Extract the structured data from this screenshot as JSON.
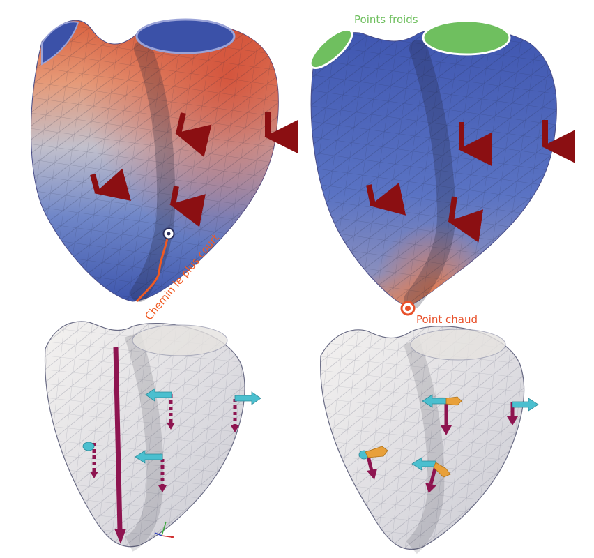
{
  "labels": {
    "cold_points": "Points froids",
    "hot_point": "Point chaud",
    "shortest_path": "Chemin le plus court"
  },
  "colors": {
    "cold_label": "#6fbf5f",
    "hot_label": "#e8502a",
    "shortest_path": "#f05a22",
    "arrow_red": "#8b0f12",
    "arrow_magenta": "#8e1450",
    "arrow_cyan": "#4bbfcf",
    "arrow_orange": "#e8a03a",
    "mesh_blue": "#4a5fb0",
    "mesh_orange": "#e0805a",
    "mesh_white": "#eeeeee"
  },
  "icons": [
    "start-point-icon",
    "hot-point-icon",
    "axes-triad-icon"
  ]
}
